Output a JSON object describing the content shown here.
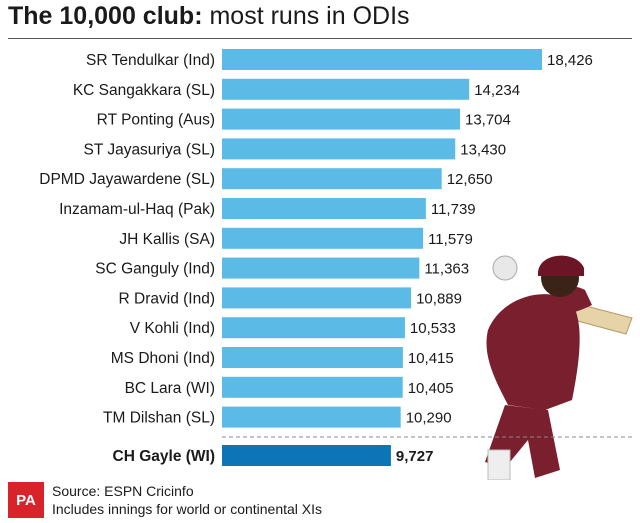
{
  "header": {
    "title_bold": "The 10,000 club:",
    "title_rest": " most runs in ODIs"
  },
  "footer": {
    "logo": "PA",
    "source": "Source: ESPN Cricinfo",
    "note": "Includes innings for world or continental XIs"
  },
  "colors": {
    "bar": "#5bbbe6",
    "highlight_bar": "#0e74b8",
    "player_shirt": "#7a1f2e"
  },
  "chart_data": {
    "type": "bar",
    "orientation": "horizontal",
    "title": "The 10,000 club: most runs in ODIs",
    "categories": [
      "SR Tendulkar (Ind)",
      "KC Sangakkara (SL)",
      "RT Ponting (Aus)",
      "ST Jayasuriya (SL)",
      "DPMD Jayawardene (SL)",
      "Inzamam-ul-Haq (Pak)",
      "JH Kallis (SA)",
      "SC Ganguly (Ind)",
      "R Dravid (Ind)",
      "V Kohli (Ind)",
      "MS Dhoni (Ind)",
      "BC Lara (WI)",
      "TM Dilshan (SL)"
    ],
    "values": [
      18426,
      14234,
      13704,
      13430,
      12650,
      11739,
      11579,
      11363,
      10889,
      10533,
      10415,
      10405,
      10290
    ],
    "value_labels": [
      "18,426",
      "14,234",
      "13,704",
      "13,430",
      "12,650",
      "11,739",
      "11,579",
      "11,363",
      "10,889",
      "10,533",
      "10,415",
      "10,405",
      "10,290"
    ],
    "highlight": {
      "category": "CH Gayle (WI)",
      "value": 9727,
      "value_label": "9,727"
    },
    "xlim": [
      0,
      18426
    ],
    "grid": false,
    "legend": "none"
  }
}
